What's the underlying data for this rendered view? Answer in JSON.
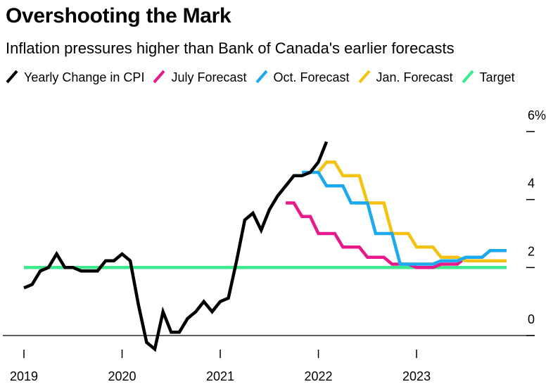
{
  "title": "Overshooting the Mark",
  "subtitle": "Inflation pressures higher than Bank of Canada's earlier forecasts",
  "chart_data": {
    "type": "line",
    "title": "Overshooting the Mark",
    "subtitle": "Inflation pressures higher than Bank of Canada's earlier forecasts",
    "xlabel": "",
    "ylabel": "",
    "x_ticks": [
      "2019",
      "2020",
      "2021",
      "2022",
      "2023"
    ],
    "y_ticks": [
      "0",
      "2",
      "4",
      "6%"
    ],
    "ylim": [
      0,
      6
    ],
    "xlim": [
      2019.0,
      2024.0
    ],
    "grid": false,
    "y_axis_side": "right",
    "legend_placement": "top-left",
    "series": [
      {
        "name": "Yearly Change in CPI",
        "color": "#000000",
        "points": [
          [
            2019.0,
            1.4
          ],
          [
            2019.083,
            1.5
          ],
          [
            2019.167,
            1.9
          ],
          [
            2019.25,
            2.0
          ],
          [
            2019.333,
            2.4
          ],
          [
            2019.417,
            2.0
          ],
          [
            2019.5,
            2.0
          ],
          [
            2019.583,
            1.9
          ],
          [
            2019.667,
            1.9
          ],
          [
            2019.75,
            1.9
          ],
          [
            2019.833,
            2.2
          ],
          [
            2019.917,
            2.2
          ],
          [
            2020.0,
            2.4
          ],
          [
            2020.083,
            2.2
          ],
          [
            2020.167,
            0.9
          ],
          [
            2020.25,
            -0.2
          ],
          [
            2020.333,
            -0.4
          ],
          [
            2020.417,
            0.7
          ],
          [
            2020.5,
            0.1
          ],
          [
            2020.583,
            0.1
          ],
          [
            2020.667,
            0.5
          ],
          [
            2020.75,
            0.7
          ],
          [
            2020.833,
            1.0
          ],
          [
            2020.917,
            0.7
          ],
          [
            2021.0,
            1.0
          ],
          [
            2021.083,
            1.1
          ],
          [
            2021.167,
            2.2
          ],
          [
            2021.25,
            3.4
          ],
          [
            2021.333,
            3.6
          ],
          [
            2021.417,
            3.1
          ],
          [
            2021.5,
            3.7
          ],
          [
            2021.583,
            4.1
          ],
          [
            2021.667,
            4.4
          ],
          [
            2021.75,
            4.7
          ],
          [
            2021.833,
            4.7
          ],
          [
            2021.917,
            4.8
          ],
          [
            2022.0,
            5.1
          ],
          [
            2022.083,
            5.7
          ]
        ]
      },
      {
        "name": "July Forecast",
        "color": "#e8198b",
        "points": [
          [
            2021.667,
            3.9
          ],
          [
            2021.75,
            3.9
          ],
          [
            2021.833,
            3.5
          ],
          [
            2021.917,
            3.5
          ],
          [
            2022.0,
            3.0
          ],
          [
            2022.083,
            3.0
          ],
          [
            2022.167,
            3.0
          ],
          [
            2022.25,
            2.6
          ],
          [
            2022.333,
            2.6
          ],
          [
            2022.417,
            2.6
          ],
          [
            2022.5,
            2.3
          ],
          [
            2022.583,
            2.3
          ],
          [
            2022.667,
            2.3
          ],
          [
            2022.75,
            2.1
          ],
          [
            2022.833,
            2.1
          ],
          [
            2022.917,
            2.1
          ],
          [
            2023.0,
            2.0
          ],
          [
            2023.083,
            2.0
          ],
          [
            2023.167,
            2.0
          ],
          [
            2023.25,
            2.1
          ],
          [
            2023.333,
            2.1
          ],
          [
            2023.417,
            2.1
          ],
          [
            2023.5,
            2.3
          ],
          [
            2023.583,
            2.3
          ],
          [
            2023.667,
            2.3
          ],
          [
            2023.75,
            2.5
          ],
          [
            2023.833,
            2.5
          ],
          [
            2023.917,
            2.5
          ]
        ]
      },
      {
        "name": "Oct. Forecast",
        "color": "#1ba9ef",
        "points": [
          [
            2021.833,
            4.8
          ],
          [
            2021.917,
            4.8
          ],
          [
            2022.0,
            4.8
          ],
          [
            2022.083,
            4.4
          ],
          [
            2022.167,
            4.4
          ],
          [
            2022.25,
            4.4
          ],
          [
            2022.333,
            3.9
          ],
          [
            2022.417,
            3.9
          ],
          [
            2022.5,
            3.9
          ],
          [
            2022.583,
            3.0
          ],
          [
            2022.667,
            3.0
          ],
          [
            2022.75,
            3.0
          ],
          [
            2022.833,
            2.1
          ],
          [
            2022.917,
            2.1
          ],
          [
            2023.0,
            2.1
          ],
          [
            2023.083,
            2.1
          ],
          [
            2023.167,
            2.1
          ],
          [
            2023.25,
            2.2
          ],
          [
            2023.333,
            2.2
          ],
          [
            2023.417,
            2.2
          ],
          [
            2023.5,
            2.3
          ],
          [
            2023.583,
            2.3
          ],
          [
            2023.667,
            2.3
          ],
          [
            2023.75,
            2.5
          ],
          [
            2023.833,
            2.5
          ],
          [
            2023.917,
            2.5
          ]
        ]
      },
      {
        "name": "Jan. Forecast",
        "color": "#f5c211",
        "points": [
          [
            2022.0,
            4.8
          ],
          [
            2022.083,
            5.1
          ],
          [
            2022.167,
            5.1
          ],
          [
            2022.25,
            4.7
          ],
          [
            2022.333,
            4.7
          ],
          [
            2022.417,
            4.7
          ],
          [
            2022.5,
            3.9
          ],
          [
            2022.583,
            3.9
          ],
          [
            2022.667,
            3.9
          ],
          [
            2022.75,
            3.0
          ],
          [
            2022.833,
            3.0
          ],
          [
            2022.917,
            3.0
          ],
          [
            2023.0,
            2.6
          ],
          [
            2023.083,
            2.6
          ],
          [
            2023.167,
            2.6
          ],
          [
            2023.25,
            2.3
          ],
          [
            2023.333,
            2.3
          ],
          [
            2023.417,
            2.3
          ],
          [
            2023.5,
            2.2
          ],
          [
            2023.583,
            2.2
          ],
          [
            2023.667,
            2.2
          ],
          [
            2023.75,
            2.2
          ],
          [
            2023.833,
            2.2
          ],
          [
            2023.917,
            2.2
          ]
        ]
      },
      {
        "name": "Target",
        "color": "#3ee88f",
        "points": [
          [
            2019.0,
            2.0
          ],
          [
            2023.917,
            2.0
          ]
        ]
      }
    ]
  }
}
